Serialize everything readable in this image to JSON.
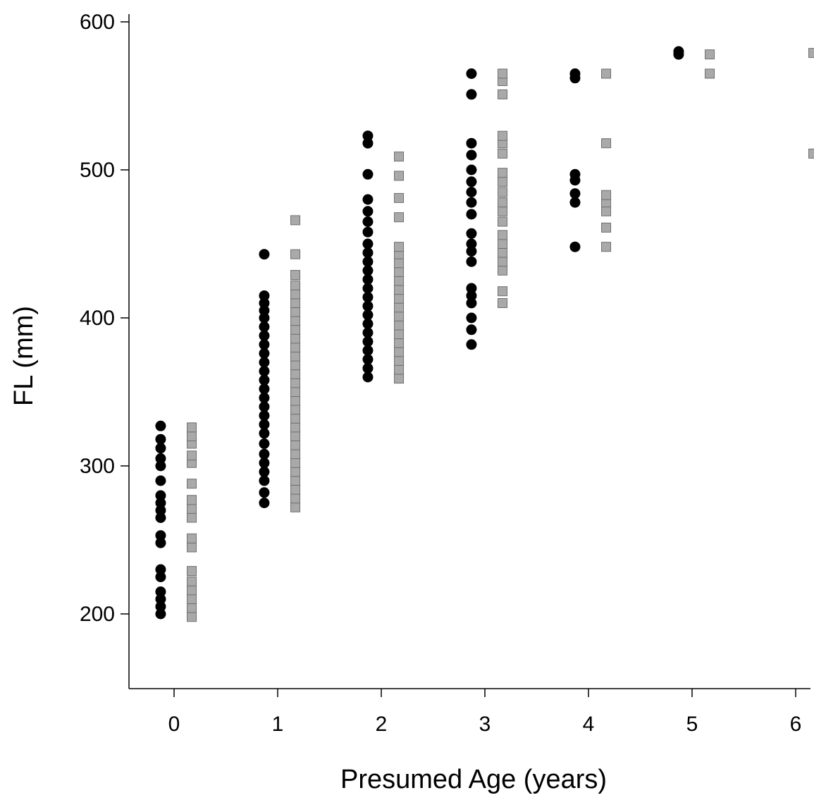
{
  "chart_data": {
    "type": "scatter",
    "title": "",
    "xlabel": "Presumed Age (years)",
    "ylabel": "FL (mm)",
    "xlim": [
      -0.45,
      6.15
    ],
    "ylim": [
      150,
      600
    ],
    "xticks": [
      0,
      1,
      2,
      3,
      4,
      5,
      6
    ],
    "yticks": [
      200,
      300,
      400,
      500,
      600
    ],
    "grid": false,
    "legend": "none",
    "colors": {
      "circle": "#000000",
      "square_fill": "#a9a9a9",
      "square_edge": "#6e6e6e"
    },
    "series": [
      {
        "marker": "circle",
        "points": [
          {
            "age": -0.15,
            "fl": [
              200,
              205,
              210,
              215,
              225,
              230,
              248,
              253,
              265,
              270,
              275,
              280,
              290,
              300,
              305,
              312,
              318,
              327
            ]
          },
          {
            "age": 0.85,
            "fl": [
              275,
              282,
              290,
              296,
              302,
              308,
              315,
              322,
              328,
              334,
              340,
              346,
              352,
              358,
              364,
              370,
              376,
              382,
              388,
              394,
              400,
              405,
              410,
              415,
              443
            ]
          },
          {
            "age": 1.85,
            "fl": [
              360,
              366,
              372,
              378,
              384,
              390,
              396,
              402,
              408,
              414,
              420,
              426,
              432,
              438,
              444,
              450,
              458,
              465,
              472,
              480,
              497,
              518,
              523
            ]
          },
          {
            "age": 2.85,
            "fl": [
              382,
              392,
              400,
              410,
              415,
              420,
              438,
              445,
              450,
              457,
              470,
              478,
              485,
              492,
              500,
              510,
              518,
              551,
              565
            ]
          },
          {
            "age": 3.85,
            "fl": [
              448,
              478,
              484,
              493,
              497,
              562,
              565
            ]
          },
          {
            "age": 4.85,
            "fl": [
              578,
              580
            ]
          }
        ]
      },
      {
        "marker": "square",
        "points": [
          {
            "age": 0.15,
            "fl": [
              198,
              204,
              210,
              216,
              222,
              229,
              245,
              251,
              265,
              271,
              277,
              288,
              302,
              307,
              315,
              320,
              326
            ]
          },
          {
            "age": 1.15,
            "fl": [
              272,
              278,
              284,
              290,
              296,
              302,
              308,
              314,
              320,
              326,
              332,
              338,
              344,
              350,
              356,
              362,
              368,
              374,
              380,
              386,
              392,
              398,
              404,
              410,
              416,
              422,
              429,
              443,
              466
            ]
          },
          {
            "age": 2.15,
            "fl": [
              359,
              365,
              371,
              377,
              383,
              389,
              395,
              401,
              407,
              413,
              419,
              425,
              431,
              437,
              443,
              448,
              468,
              481,
              496,
              509
            ]
          },
          {
            "age": 3.15,
            "fl": [
              410,
              418,
              432,
              438,
              444,
              450,
              456,
              465,
              472,
              478,
              485,
              492,
              498,
              511,
              518,
              523,
              551,
              560,
              565
            ]
          },
          {
            "age": 4.15,
            "fl": [
              448,
              461,
              472,
              478,
              483,
              518,
              565
            ]
          },
          {
            "age": 5.15,
            "fl": [
              565,
              578
            ]
          },
          {
            "age": 6.15,
            "fl": [
              511,
              579
            ]
          }
        ]
      }
    ]
  }
}
